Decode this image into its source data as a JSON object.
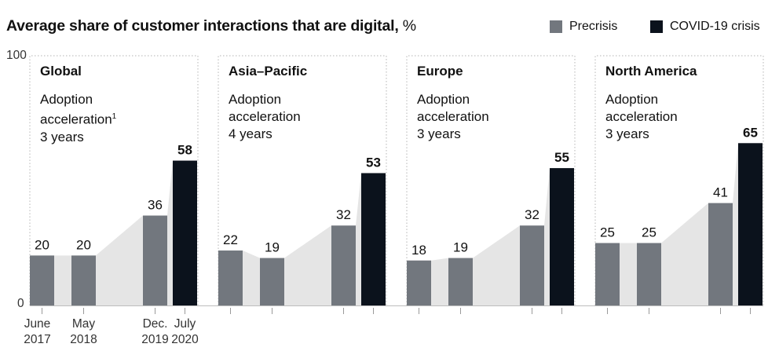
{
  "title": "Average share of customer interactions that are digital,",
  "title_unit": "%",
  "legend": [
    {
      "label": "Precrisis",
      "color": "#72777e"
    },
    {
      "label": "COVID-19 crisis",
      "color": "#0b121c"
    }
  ],
  "colors": {
    "precrisis": "#72777e",
    "crisis": "#0b121c",
    "area": "#e5e5e5",
    "border": "#b5b5b5"
  },
  "chart_data": {
    "type": "bar",
    "ylim": [
      0,
      100
    ],
    "y_ticks": [
      "100",
      "0"
    ],
    "categories": [
      "June 2017",
      "May 2018",
      "Dec. 2019",
      "July 2020"
    ],
    "x_labels": [
      {
        "line1": "June",
        "line2": "2017"
      },
      {
        "line1": "May",
        "line2": "2018"
      },
      {
        "line1": "Dec.",
        "line2": "2019"
      },
      {
        "line1": "July",
        "line2": "2020"
      }
    ],
    "series_types": [
      "Precrisis",
      "Precrisis",
      "Precrisis",
      "COVID-19 crisis"
    ],
    "panels": [
      {
        "region": "Global",
        "adoption_line1": "Adoption",
        "adoption_line2": "acceleration",
        "footnote": "1",
        "years": "3 years",
        "values": [
          20,
          20,
          36,
          58
        ],
        "labels": [
          "20",
          "20",
          "36",
          "58"
        ]
      },
      {
        "region": "Asia–Pacific",
        "adoption_line1": "Adoption",
        "adoption_line2": "acceleration",
        "footnote": "",
        "years": "4 years",
        "values": [
          22,
          19,
          32,
          53
        ],
        "labels": [
          "22",
          "19",
          "32",
          "53"
        ]
      },
      {
        "region": "Europe",
        "adoption_line1": "Adoption",
        "adoption_line2": "acceleration",
        "footnote": "",
        "years": "3 years",
        "values": [
          18,
          19,
          32,
          55
        ],
        "labels": [
          "18",
          "19",
          "32",
          "55"
        ]
      },
      {
        "region": "North America",
        "adoption_line1": "Adoption",
        "adoption_line2": "acceleration",
        "footnote": "",
        "years": "3 years",
        "values": [
          25,
          25,
          41,
          65
        ],
        "labels": [
          "25",
          "25",
          "41",
          "65"
        ]
      }
    ]
  }
}
